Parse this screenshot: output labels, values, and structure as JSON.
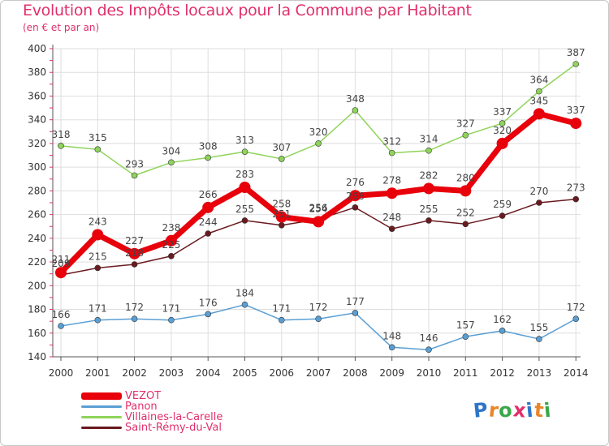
{
  "header": {
    "title": "Evolution des Impôts locaux pour la Commune par Habitant",
    "subtitle": "(en € et par an)"
  },
  "logo": {
    "letters": [
      "P",
      "r",
      "o",
      "x",
      "i",
      "t",
      "i"
    ],
    "colors": [
      "#2e75c8",
      "#e8862a",
      "#3aa84a",
      "#e0306a",
      "#2e75c8",
      "#e8862a",
      "#3aa84a"
    ]
  },
  "chart_data": {
    "type": "line",
    "title": "Evolution des Impôts locaux pour la Commune par Habitant",
    "subtitle": "(en € et par an)",
    "xlabel": "",
    "ylabel": "",
    "categories": [
      "2000",
      "2001",
      "2002",
      "2003",
      "2004",
      "2005",
      "2006",
      "2007",
      "2008",
      "2009",
      "2010",
      "2011",
      "2012",
      "2013",
      "2014"
    ],
    "ylim": [
      140,
      400
    ],
    "yticks": [
      140,
      160,
      180,
      200,
      220,
      240,
      260,
      280,
      300,
      320,
      340,
      360,
      380,
      400
    ],
    "grid": true,
    "legend_position": "bottom-left",
    "series": [
      {
        "name": "VEZOT",
        "color": "#e8000b",
        "values": [
          211,
          243,
          227,
          238,
          266,
          283,
          258,
          254,
          276,
          278,
          282,
          280,
          320,
          345,
          337
        ]
      },
      {
        "name": "Panon",
        "color": "#5a9fd4",
        "values": [
          166,
          171,
          172,
          171,
          176,
          184,
          171,
          172,
          177,
          148,
          146,
          157,
          162,
          155,
          172
        ]
      },
      {
        "name": "Villaines-la-Carelle",
        "color": "#8fd45a",
        "values": [
          318,
          315,
          293,
          304,
          308,
          313,
          307,
          320,
          348,
          312,
          314,
          327,
          337,
          364,
          387
        ]
      },
      {
        "name": "Saint-Rémy-du-Val",
        "color": "#6a1a1f",
        "values": [
          209,
          215,
          218,
          225,
          244,
          255,
          251,
          256,
          266,
          248,
          255,
          252,
          259,
          270,
          273
        ]
      }
    ]
  }
}
